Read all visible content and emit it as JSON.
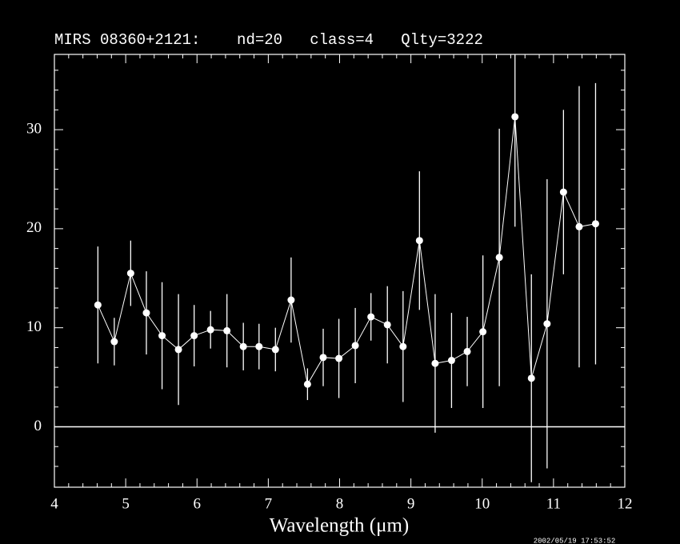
{
  "chart_data": {
    "type": "errorbar",
    "title": "MIRS 08360+2121:    nd=20   class=4   Qlty=3222",
    "x_label": "Wavelength (μm)",
    "timestamp": "2002/05/19 17:53:52",
    "color": "#ffffff",
    "x": [
      4.61,
      4.84,
      5.07,
      5.29,
      5.51,
      5.74,
      5.96,
      6.19,
      6.42,
      6.65,
      6.87,
      7.1,
      7.32,
      7.55,
      7.77,
      7.99,
      8.22,
      8.44,
      8.67,
      8.89,
      9.12,
      9.34,
      9.57,
      9.79,
      10.01,
      10.24,
      10.46,
      10.69,
      10.91,
      11.14,
      11.36,
      11.59
    ],
    "values": [
      12.3,
      8.6,
      15.5,
      11.5,
      9.2,
      7.8,
      9.2,
      9.8,
      9.7,
      8.1,
      8.1,
      7.8,
      12.8,
      4.3,
      7.0,
      6.9,
      8.2,
      11.1,
      10.3,
      8.1,
      18.8,
      6.4,
      6.7,
      7.6,
      9.6,
      17.1,
      31.3,
      4.9,
      10.4,
      23.7,
      20.2,
      20.5
    ],
    "errors": [
      5.9,
      2.4,
      3.3,
      4.2,
      5.4,
      5.6,
      3.1,
      1.9,
      3.7,
      2.4,
      2.3,
      2.2,
      4.3,
      1.6,
      2.9,
      4.0,
      3.8,
      2.4,
      3.9,
      5.6,
      7.0,
      7.0,
      4.8,
      3.5,
      7.7,
      13.0,
      11.1,
      10.5,
      14.6,
      8.3,
      14.2,
      14.2
    ],
    "reference_line": 0,
    "xlim": [
      4,
      12
    ],
    "ylim": [
      -6.1,
      37.6
    ],
    "xticks": [
      4,
      5,
      6,
      7,
      8,
      9,
      10,
      11,
      12
    ],
    "yticks": [
      0,
      10,
      20,
      30
    ],
    "xminorticks": [
      4.2,
      4.4,
      4.6,
      4.8,
      5.2,
      5.4,
      5.6,
      5.8,
      6.2,
      6.4,
      6.6,
      6.8,
      7.2,
      7.4,
      7.6,
      7.8,
      8.2,
      8.4,
      8.6,
      8.8,
      9.2,
      9.4,
      9.6,
      9.8,
      10.2,
      10.4,
      10.6,
      10.8,
      11.2,
      11.4,
      11.6,
      11.8
    ],
    "yminorticks": [
      -4,
      -2,
      2,
      4,
      6,
      8,
      12,
      14,
      16,
      18,
      22,
      24,
      26,
      28,
      32,
      34,
      36
    ]
  }
}
